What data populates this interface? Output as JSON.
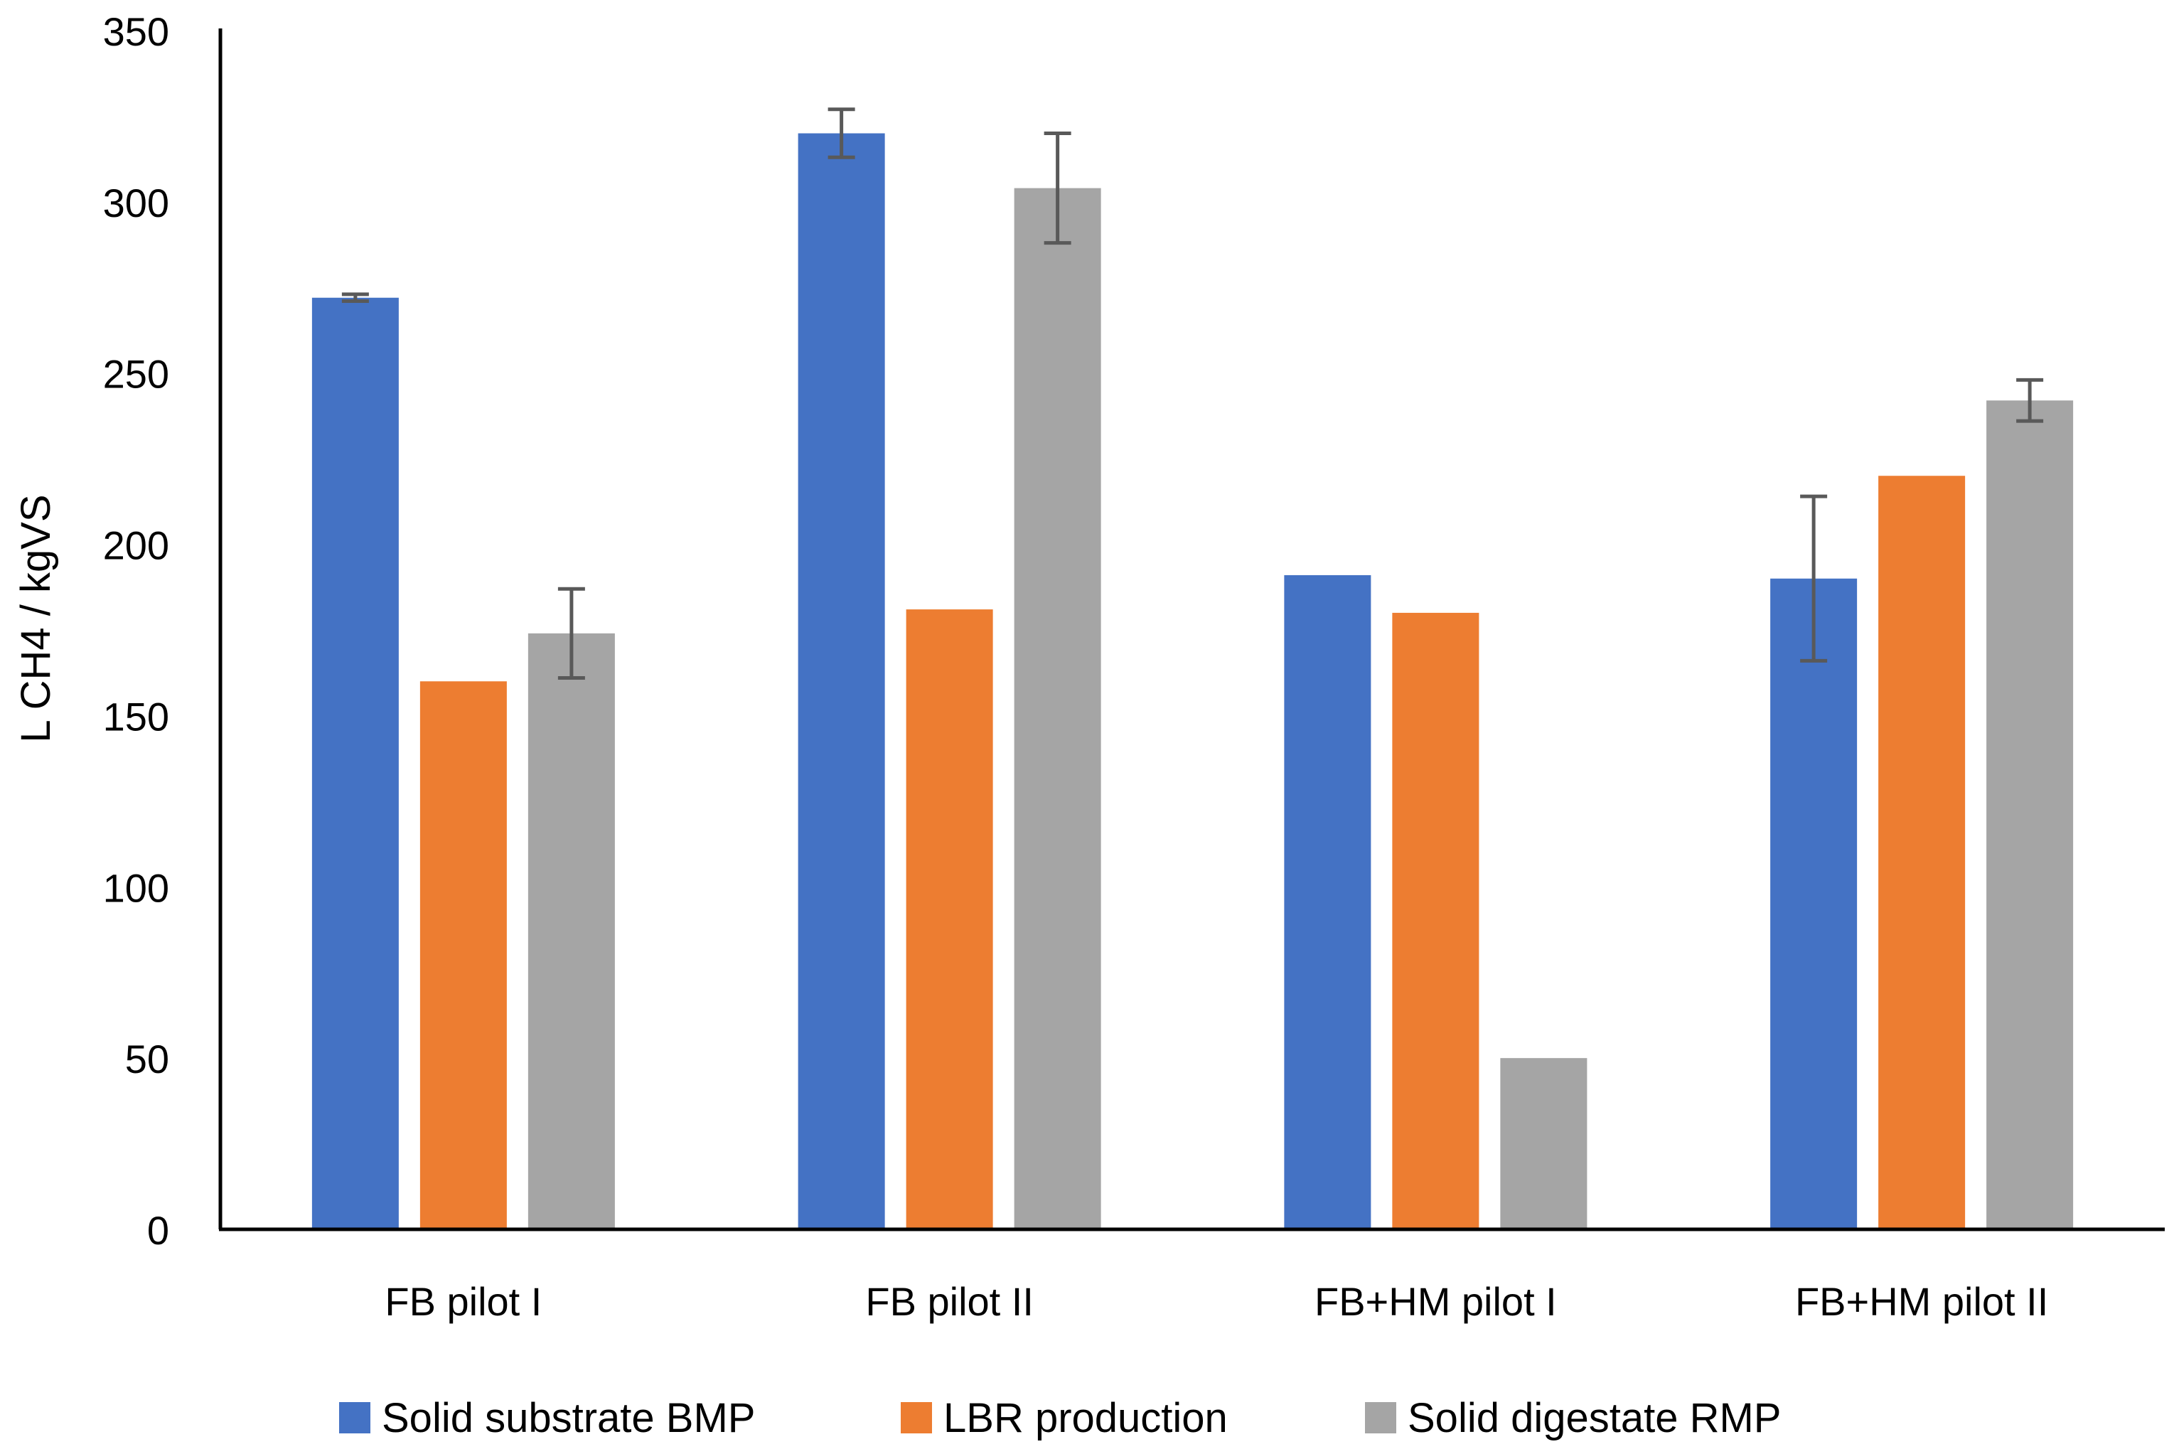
{
  "chart_data": {
    "type": "bar",
    "title": "",
    "xlabel": "",
    "ylabel": "L CH4 / kgVS",
    "ylim": [
      0,
      350
    ],
    "yticks": [
      0,
      50,
      100,
      150,
      200,
      250,
      300,
      350
    ],
    "grid": false,
    "legend_position": "bottom-center",
    "categories": [
      "FB pilot I",
      "FB pilot II",
      "FB+HM pilot I",
      "FB+HM pilot II"
    ],
    "series": [
      {
        "name": "Solid substrate BMP",
        "color": "#4472C4",
        "values": [
          272,
          320,
          191,
          190
        ],
        "errors": [
          1,
          7,
          null,
          24
        ]
      },
      {
        "name": "LBR production",
        "color": "#ED7D31",
        "values": [
          160,
          181,
          180,
          220
        ],
        "errors": [
          null,
          null,
          null,
          null
        ]
      },
      {
        "name": "Solid digestate RMP",
        "color": "#A5A5A5",
        "values": [
          174,
          304,
          50,
          242
        ],
        "errors": [
          13,
          16,
          null,
          6
        ]
      }
    ]
  }
}
